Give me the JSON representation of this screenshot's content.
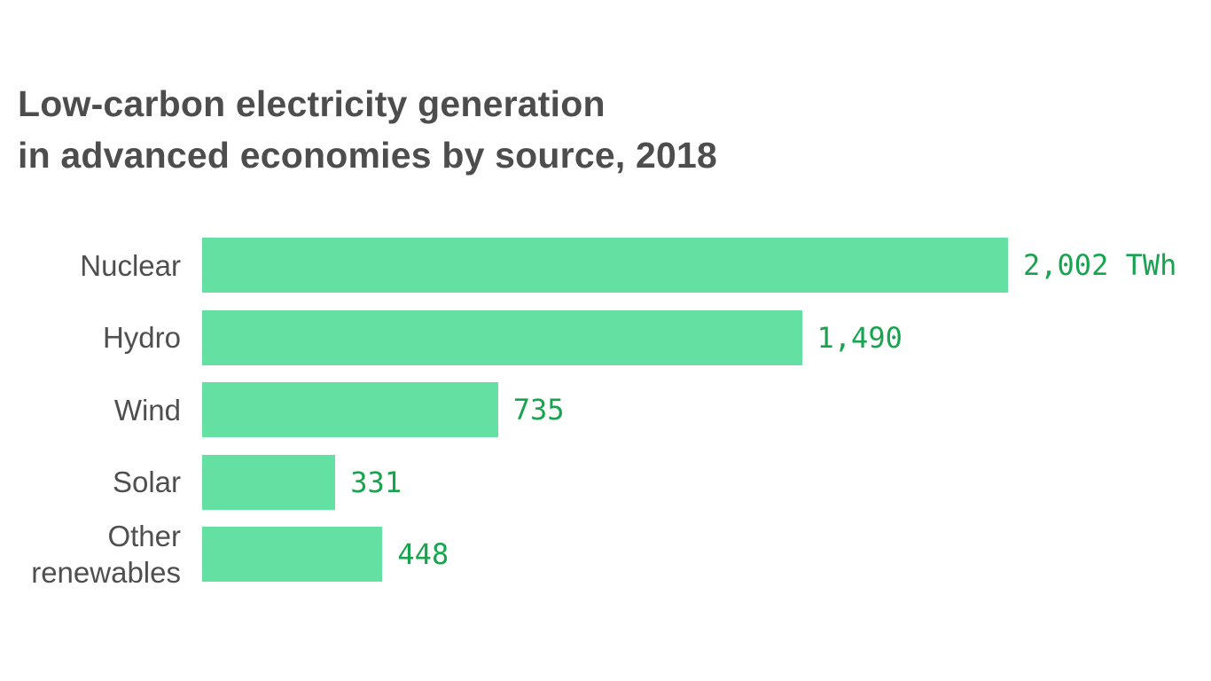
{
  "page": {
    "background_color": "#ffffff"
  },
  "title": {
    "line1": "Low-carbon electricity generation",
    "line2": "in advanced economies by source, 2018",
    "color": "#4d4d4d"
  },
  "chart_data": {
    "type": "bar",
    "orientation": "horizontal",
    "title": "Low-carbon electricity generation in advanced economies by source, 2018",
    "categories": [
      "Nuclear",
      "Hydro",
      "Wind",
      "Solar",
      "Other renewables"
    ],
    "values": [
      2002,
      1490,
      735,
      331,
      448
    ],
    "value_labels": [
      "2,002 TWh",
      "1,490",
      "735",
      "331",
      "448"
    ],
    "unit": "TWh",
    "xlabel": "",
    "ylabel": "",
    "xlim": [
      0,
      2002
    ],
    "grid": false,
    "legend": false,
    "axis_lines": false,
    "bar_color": "#63e0a2",
    "value_label_color": "#18a34f",
    "category_label_color": "#4f4f4f"
  }
}
